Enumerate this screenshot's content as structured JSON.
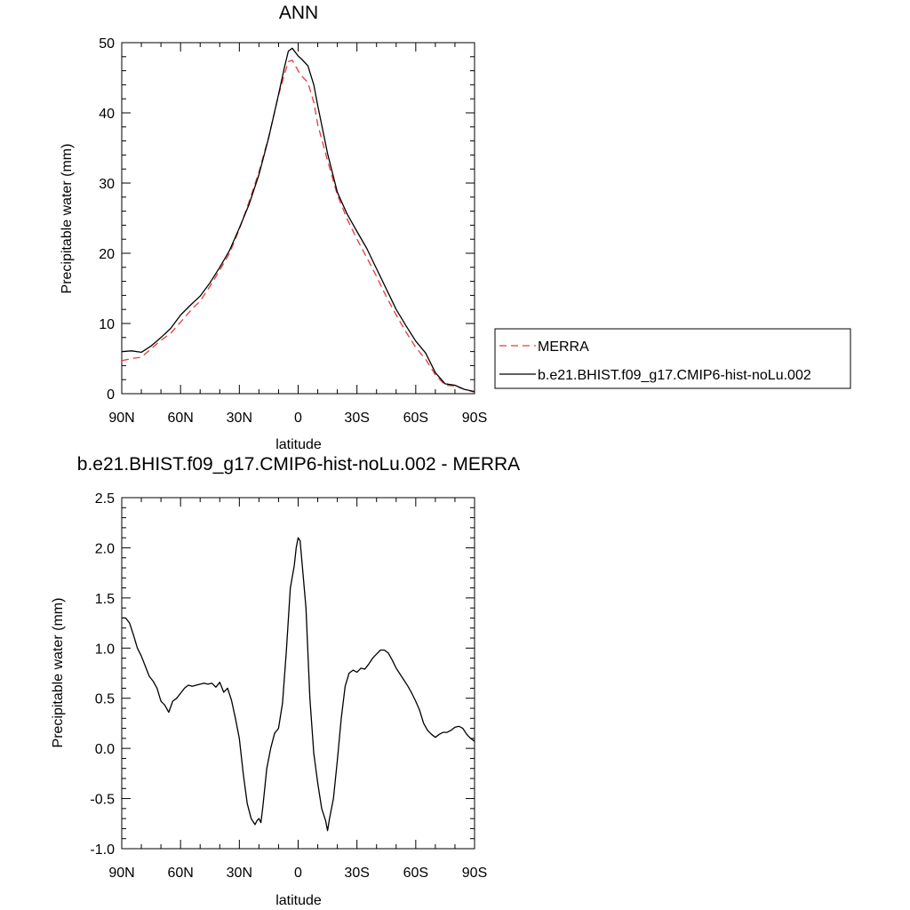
{
  "chart_data": [
    {
      "type": "line",
      "title": "ANN",
      "xlabel": "latitude",
      "ylabel": "Precipitable water (mm)",
      "xlim": [
        90,
        -90
      ],
      "ylim": [
        0,
        50
      ],
      "x_ticks": [
        90,
        60,
        30,
        0,
        -30,
        -60,
        -90
      ],
      "x_tick_labels": [
        "90N",
        "60N",
        "30N",
        "0",
        "30S",
        "60S",
        "90S"
      ],
      "y_ticks": [
        0,
        10,
        20,
        30,
        40,
        50
      ],
      "y_tick_labels": [
        "0",
        "10",
        "20",
        "30",
        "40",
        "50"
      ],
      "grid": false,
      "legend_placement": "right-outside",
      "series": [
        {
          "name": "MERRA",
          "color": "#e8393d",
          "dash": "dashed",
          "x": [
            90,
            85,
            80,
            75,
            70,
            65,
            60,
            55,
            50,
            45,
            40,
            35,
            30,
            25,
            20,
            15,
            10,
            7,
            5,
            3,
            0,
            -2,
            -5,
            -8,
            -10,
            -15,
            -20,
            -25,
            -30,
            -35,
            -40,
            -45,
            -50,
            -55,
            -60,
            -65,
            -70,
            -75,
            -80,
            -85,
            -90
          ],
          "values": [
            4.7,
            5.0,
            5.2,
            6.4,
            7.6,
            8.6,
            10.2,
            11.8,
            13.2,
            15.3,
            17.6,
            20.0,
            23.4,
            27.4,
            31.6,
            36.6,
            42.5,
            45.5,
            47.3,
            47.5,
            46.0,
            45.2,
            44.3,
            41.5,
            38.3,
            33.2,
            28.3,
            24.9,
            22.0,
            19.4,
            16.7,
            13.8,
            11.2,
            8.8,
            6.6,
            4.9,
            2.7,
            1.2,
            1.1,
            0.6,
            0.2
          ]
        },
        {
          "name": "b.e21.BHIST.f09_g17.CMIP6-hist-noLu.002",
          "color": "#000000",
          "dash": "solid",
          "x": [
            90,
            85,
            80,
            75,
            70,
            65,
            60,
            55,
            50,
            45,
            40,
            35,
            30,
            25,
            20,
            15,
            10,
            7,
            5,
            3,
            0,
            -2,
            -5,
            -8,
            -10,
            -15,
            -20,
            -25,
            -30,
            -35,
            -40,
            -45,
            -50,
            -55,
            -60,
            -65,
            -70,
            -75,
            -80,
            -85,
            -90
          ],
          "values": [
            6.0,
            6.1,
            5.9,
            6.8,
            8.0,
            9.3,
            11.2,
            12.6,
            13.9,
            15.8,
            18.0,
            20.4,
            23.6,
            27.0,
            31.2,
            36.5,
            42.6,
            46.5,
            48.8,
            49.2,
            48.1,
            47.6,
            46.7,
            44.0,
            41.0,
            34.2,
            28.7,
            25.6,
            23.1,
            20.7,
            17.8,
            14.9,
            12.0,
            9.7,
            7.5,
            5.8,
            3.0,
            1.4,
            1.2,
            0.6,
            0.3
          ]
        }
      ]
    },
    {
      "type": "line",
      "title": "b.e21.BHIST.f09_g17.CMIP6-hist-noLu.002 - MERRA",
      "xlabel": "latitude",
      "ylabel": "Precipitable water (mm)",
      "xlim": [
        90,
        -90
      ],
      "ylim": [
        -1.0,
        2.5
      ],
      "x_ticks": [
        90,
        60,
        30,
        0,
        -30,
        -60,
        -90
      ],
      "x_tick_labels": [
        "90N",
        "60N",
        "30N",
        "0",
        "30S",
        "60S",
        "90S"
      ],
      "y_ticks": [
        -1.0,
        -0.5,
        0.0,
        0.5,
        1.0,
        1.5,
        2.0,
        2.5
      ],
      "y_tick_labels": [
        "-1.0",
        "-0.5",
        "0.0",
        "0.5",
        "1.0",
        "1.5",
        "2.0",
        "2.5"
      ],
      "grid": false,
      "series": [
        {
          "color": "#000000",
          "dash": "solid",
          "x": [
            90,
            88,
            86,
            84,
            82,
            80,
            78,
            76,
            74,
            72,
            70,
            68,
            66,
            64,
            62,
            60,
            58,
            56,
            54,
            52,
            50,
            48,
            46,
            44,
            42,
            40,
            38,
            36,
            34,
            32,
            30,
            28,
            26,
            24,
            22,
            21,
            20,
            19,
            18,
            16,
            14,
            12,
            10,
            8,
            6,
            4,
            2,
            1,
            0,
            -1,
            -2,
            -4,
            -6,
            -8,
            -10,
            -12,
            -14,
            -15,
            -16,
            -18,
            -20,
            -22,
            -24,
            -26,
            -28,
            -30,
            -32,
            -34,
            -36,
            -38,
            -40,
            -42,
            -44,
            -46,
            -48,
            -50,
            -52,
            -54,
            -56,
            -58,
            -60,
            -62,
            -64,
            -66,
            -68,
            -70,
            -72,
            -74,
            -76,
            -78,
            -80,
            -82,
            -84,
            -86,
            -88,
            -90
          ],
          "values": [
            1.3,
            1.3,
            1.25,
            1.13,
            1.0,
            0.92,
            0.82,
            0.72,
            0.67,
            0.6,
            0.47,
            0.43,
            0.36,
            0.47,
            0.5,
            0.55,
            0.6,
            0.63,
            0.62,
            0.63,
            0.64,
            0.65,
            0.64,
            0.65,
            0.61,
            0.66,
            0.56,
            0.6,
            0.48,
            0.3,
            0.1,
            -0.25,
            -0.55,
            -0.7,
            -0.76,
            -0.72,
            -0.7,
            -0.74,
            -0.58,
            -0.2,
            0.0,
            0.15,
            0.2,
            0.45,
            0.98,
            1.6,
            1.82,
            2.0,
            2.1,
            2.07,
            1.85,
            1.4,
            0.5,
            -0.05,
            -0.35,
            -0.6,
            -0.72,
            -0.82,
            -0.7,
            -0.5,
            -0.12,
            0.3,
            0.62,
            0.75,
            0.78,
            0.76,
            0.8,
            0.79,
            0.84,
            0.9,
            0.94,
            0.98,
            0.98,
            0.95,
            0.88,
            0.8,
            0.74,
            0.68,
            0.62,
            0.55,
            0.47,
            0.38,
            0.25,
            0.18,
            0.14,
            0.11,
            0.14,
            0.16,
            0.16,
            0.18,
            0.21,
            0.22,
            0.2,
            0.14,
            0.1,
            0.07
          ]
        }
      ]
    }
  ]
}
